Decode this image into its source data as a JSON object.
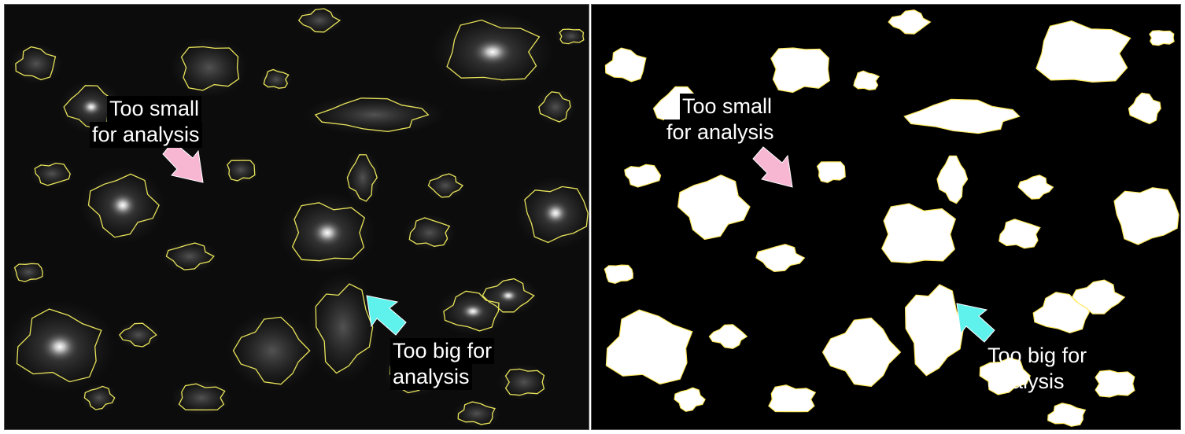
{
  "panels": {
    "left": {
      "annotations": {
        "small_label_line1": "Too small",
        "small_label_line2": "for analysis",
        "big_label_line1": "Too big for",
        "big_label_line2": "analysis"
      }
    },
    "right": {
      "annotations": {
        "small_label_line1": "Too small",
        "small_label_line2": "for analysis",
        "big_label_line1": "Too big for",
        "big_label_line2": "analysis"
      }
    }
  },
  "colors": {
    "outline": "#e8e35a",
    "small_arrow": "#f7b6d2",
    "big_arrow": "#5ff2ec",
    "mask_fill": "#ffffff",
    "mask_edge": "#ffe95c"
  }
}
